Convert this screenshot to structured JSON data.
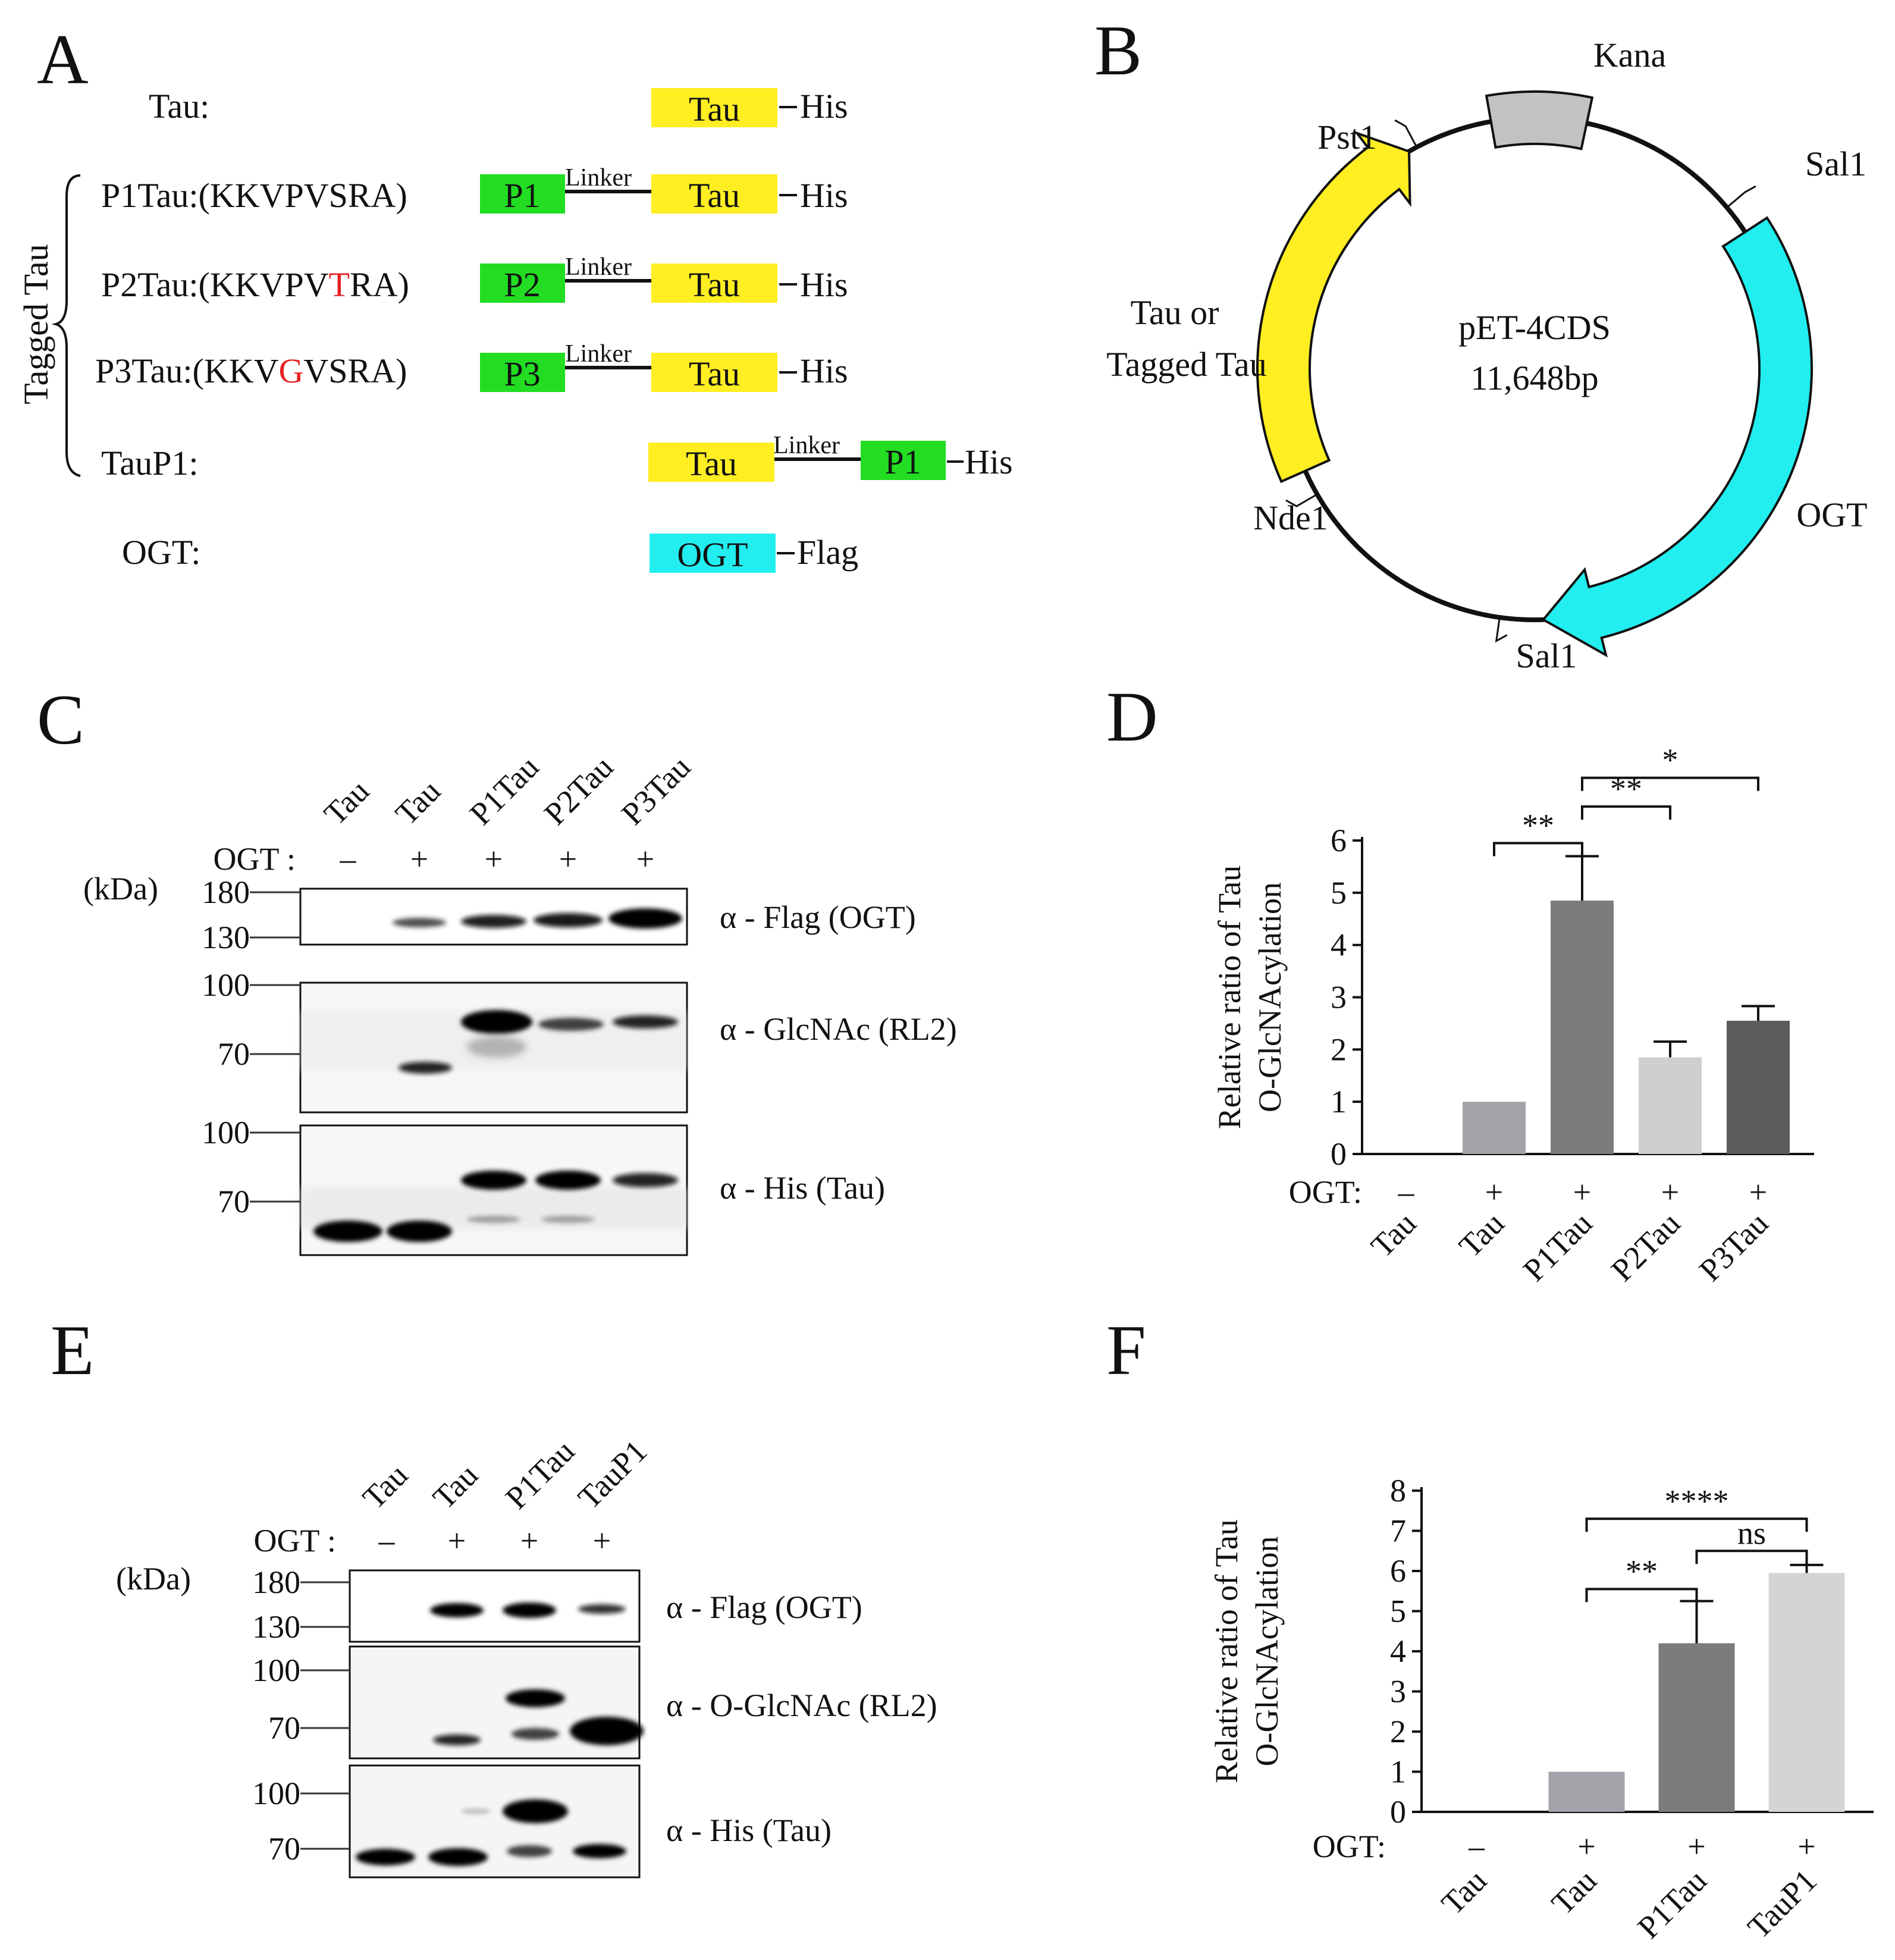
{
  "colors": {
    "tau": "#ffee22",
    "peptide": "#22dd22",
    "ogt": "#22eef0",
    "kana": "#c2c2c2",
    "mutation": "#e52020",
    "bar_tau": "#a2a2a8",
    "bar_p1tau": "#7c7c7c",
    "bar_p2tau": "#cfcfcf",
    "bar_p3tau": "#5c5c5c",
    "bar_taup1": "#d4d4d4"
  },
  "panelA": {
    "letter": "A",
    "group_label": "Tagged Tau",
    "rows": [
      {
        "label": "Tau:",
        "seq_pre": "",
        "seq_mut": "",
        "seq_post": "",
        "peptide": "",
        "tau": "Tau",
        "tag": "His"
      },
      {
        "label": "P1Tau:",
        "seq_pre": "(KKVPVSRA)",
        "seq_mut": "",
        "seq_post": "",
        "peptide": "P1",
        "linker": "Linker",
        "tau": "Tau",
        "tag": "His"
      },
      {
        "label": "P2Tau:",
        "seq_pre": "(KKVPV",
        "seq_mut": "T",
        "seq_post": "RA)",
        "peptide": "P2",
        "linker": "Linker",
        "tau": "Tau",
        "tag": "His"
      },
      {
        "label": "P3Tau:",
        "seq_pre": "(KKV",
        "seq_mut": "G",
        "seq_post": "VSRA)",
        "peptide": "P3",
        "linker": "Linker",
        "tau": "Tau",
        "tag": "His"
      },
      {
        "label": "TauP1:",
        "tau": "Tau",
        "linker": "Linker",
        "peptide": "P1",
        "tag": "His"
      },
      {
        "label": "OGT:",
        "ogt": "OGT",
        "tag": "Flag"
      }
    ]
  },
  "panelB": {
    "letter": "B",
    "plasmid_name": "pET-4CDS",
    "plasmid_size": "11,648bp",
    "labels": {
      "kana": "Kana",
      "pst1": "Pst1",
      "sal1_top": "Sal1",
      "sal1_bottom": "Sal1",
      "nde1": "Nde1",
      "ogt": "OGT",
      "insert_line1": "Tau or",
      "insert_line2": "Tagged Tau"
    }
  },
  "panelC": {
    "letter": "C",
    "lanes": [
      "Tau",
      "Tau",
      "P1Tau",
      "P2Tau",
      "P3Tau"
    ],
    "ogt_label": "OGT :",
    "ogt_signs": [
      "–",
      "+",
      "+",
      "+",
      "+"
    ],
    "kda_label": "(kDa)",
    "blots": [
      {
        "label": "α - Flag (OGT)",
        "markers": [
          "180",
          "130"
        ]
      },
      {
        "label": "α - GlcNAc (RL2)",
        "markers": [
          "100",
          "70"
        ]
      },
      {
        "label": "α - His (Tau)",
        "markers": [
          "100",
          "70"
        ]
      }
    ]
  },
  "panelE": {
    "letter": "E",
    "lanes": [
      "Tau",
      "Tau",
      "P1Tau",
      "TauP1"
    ],
    "ogt_label": "OGT :",
    "ogt_signs": [
      "–",
      "+",
      "+",
      "+"
    ],
    "kda_label": "(kDa)",
    "blots": [
      {
        "label": "α - Flag (OGT)",
        "markers": [
          "180",
          "130"
        ]
      },
      {
        "label": "α - O-GlcNAc (RL2)",
        "markers": [
          "100",
          "70"
        ]
      },
      {
        "label": "α - His (Tau)",
        "markers": [
          "100",
          "70"
        ]
      }
    ]
  },
  "chart_data": [
    {
      "panel": "D",
      "letter": "D",
      "type": "bar",
      "categories": [
        "Tau",
        "Tau",
        "P1Tau",
        "P2Tau",
        "P3Tau"
      ],
      "ogt": [
        "–",
        "+",
        "+",
        "+",
        "+"
      ],
      "ogt_label": "OGT:",
      "values": [
        0,
        1.0,
        4.85,
        1.85,
        2.55
      ],
      "errors": [
        0,
        0,
        0.85,
        0.3,
        0.28
      ],
      "ylabel_line1": "Relative  ratio of Tau",
      "ylabel_line2": "O-GlcNAcylation",
      "ylim": [
        0,
        6
      ],
      "yticks": [
        0,
        1,
        2,
        3,
        4,
        5,
        6
      ],
      "significance": [
        {
          "from": 1,
          "to": 2,
          "label": "**"
        },
        {
          "from": 2,
          "to": 3,
          "label": "**"
        },
        {
          "from": 2,
          "to": 4,
          "label": "*"
        }
      ]
    },
    {
      "panel": "F",
      "letter": "F",
      "type": "bar",
      "categories": [
        "Tau",
        "Tau",
        "P1Tau",
        "TauP1"
      ],
      "ogt": [
        "–",
        "+",
        "+",
        "+"
      ],
      "ogt_label": "OGT:",
      "values": [
        0,
        1.0,
        4.2,
        5.95
      ],
      "errors": [
        0,
        0,
        1.05,
        0.2
      ],
      "ylabel_line1": "Relative ratio of Tau",
      "ylabel_line2": "O-GlcNAcylation",
      "ylim": [
        0,
        8
      ],
      "yticks": [
        0,
        1,
        2,
        3,
        4,
        5,
        6,
        7,
        8
      ],
      "significance": [
        {
          "from": 1,
          "to": 2,
          "label": "**"
        },
        {
          "from": 2,
          "to": 3,
          "label": "ns"
        },
        {
          "from": 1,
          "to": 3,
          "label": "****"
        }
      ]
    }
  ]
}
